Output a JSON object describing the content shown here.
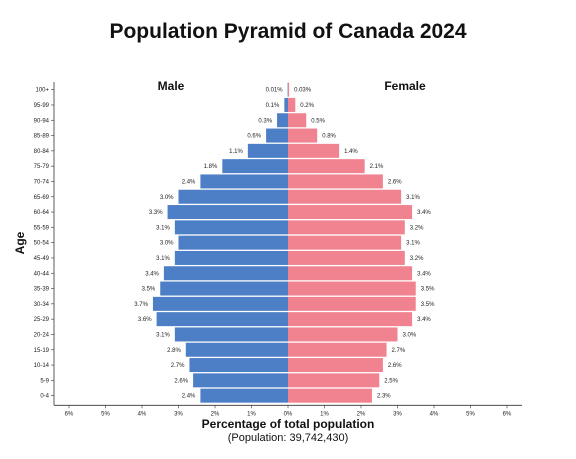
{
  "chart_data": {
    "type": "bar",
    "orientation": "horizontal-diverging",
    "title": "Population Pyramid of Canada 2024",
    "ylabel": "Age",
    "xlabel": "Percentage of total population",
    "xsublabel": "(Population: 39,742,430)",
    "x_ticks": [
      "6%",
      "5%",
      "4%",
      "3%",
      "2%",
      "1%",
      "0%",
      "1%",
      "2%",
      "3%",
      "4%",
      "5%",
      "6%"
    ],
    "xlim": [
      -6,
      6
    ],
    "categories": [
      "100+",
      "95-99",
      "90-94",
      "85-89",
      "80-84",
      "75-79",
      "70-74",
      "65-69",
      "60-64",
      "55-59",
      "50-54",
      "45-49",
      "40-44",
      "35-39",
      "30-34",
      "25-29",
      "20-24",
      "15-19",
      "10-14",
      "5-9",
      "0-4"
    ],
    "series": [
      {
        "name": "Male",
        "color": "#4c7fc5",
        "values": [
          0.01,
          0.1,
          0.3,
          0.6,
          1.1,
          1.8,
          2.4,
          3.0,
          3.3,
          3.1,
          3.0,
          3.1,
          3.4,
          3.5,
          3.7,
          3.6,
          3.1,
          2.8,
          2.7,
          2.6,
          2.4
        ],
        "labels": [
          "0.01%",
          "0.1%",
          "0.3%",
          "0.6%",
          "1.1%",
          "1.8%",
          "2.4%",
          "3.0%",
          "3.3%",
          "3.1%",
          "3.0%",
          "3.1%",
          "3.4%",
          "3.5%",
          "3.7%",
          "3.6%",
          "3.1%",
          "2.8%",
          "2.7%",
          "2.6%",
          "2.4%"
        ]
      },
      {
        "name": "Female",
        "color": "#f0838f",
        "values": [
          0.03,
          0.2,
          0.5,
          0.8,
          1.4,
          2.1,
          2.6,
          3.1,
          3.4,
          3.2,
          3.1,
          3.2,
          3.4,
          3.5,
          3.5,
          3.4,
          3.0,
          2.7,
          2.6,
          2.5,
          2.3
        ],
        "labels": [
          "0.03%",
          "0.2%",
          "0.5%",
          "0.8%",
          "1.4%",
          "2.1%",
          "2.6%",
          "3.1%",
          "3.4%",
          "3.2%",
          "3.1%",
          "3.2%",
          "3.4%",
          "3.5%",
          "3.5%",
          "3.4%",
          "3.0%",
          "2.7%",
          "2.6%",
          "2.5%",
          "2.3%"
        ]
      }
    ],
    "grid": false,
    "legend": "top labels"
  }
}
